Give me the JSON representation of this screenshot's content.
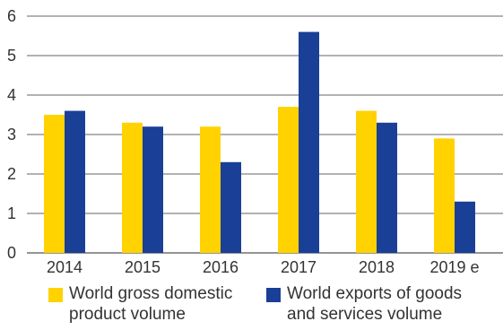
{
  "chart_data": {
    "type": "bar",
    "categories": [
      "2014",
      "2015",
      "2016",
      "2017",
      "2018",
      "2019 e"
    ],
    "series": [
      {
        "name": "World gross domestic product volume",
        "values": [
          3.5,
          3.3,
          3.2,
          3.7,
          3.6,
          2.9
        ],
        "color": "#FFD200"
      },
      {
        "name": "World exports of goods and services volume",
        "values": [
          3.6,
          3.2,
          2.3,
          5.6,
          3.3,
          1.3
        ],
        "color": "#1A3F96"
      }
    ],
    "ylim": [
      0,
      6
    ],
    "yticks": [
      "0",
      "1",
      "2",
      "3",
      "4",
      "5",
      "6"
    ],
    "grid": true,
    "legend_position": "bottom",
    "title": "",
    "xlabel": "",
    "ylabel": ""
  },
  "legend": {
    "gdp_line1": "World gross domestic",
    "gdp_line2": "product volume",
    "exports_line1": "World exports of goods",
    "exports_line2": "and services volume"
  }
}
